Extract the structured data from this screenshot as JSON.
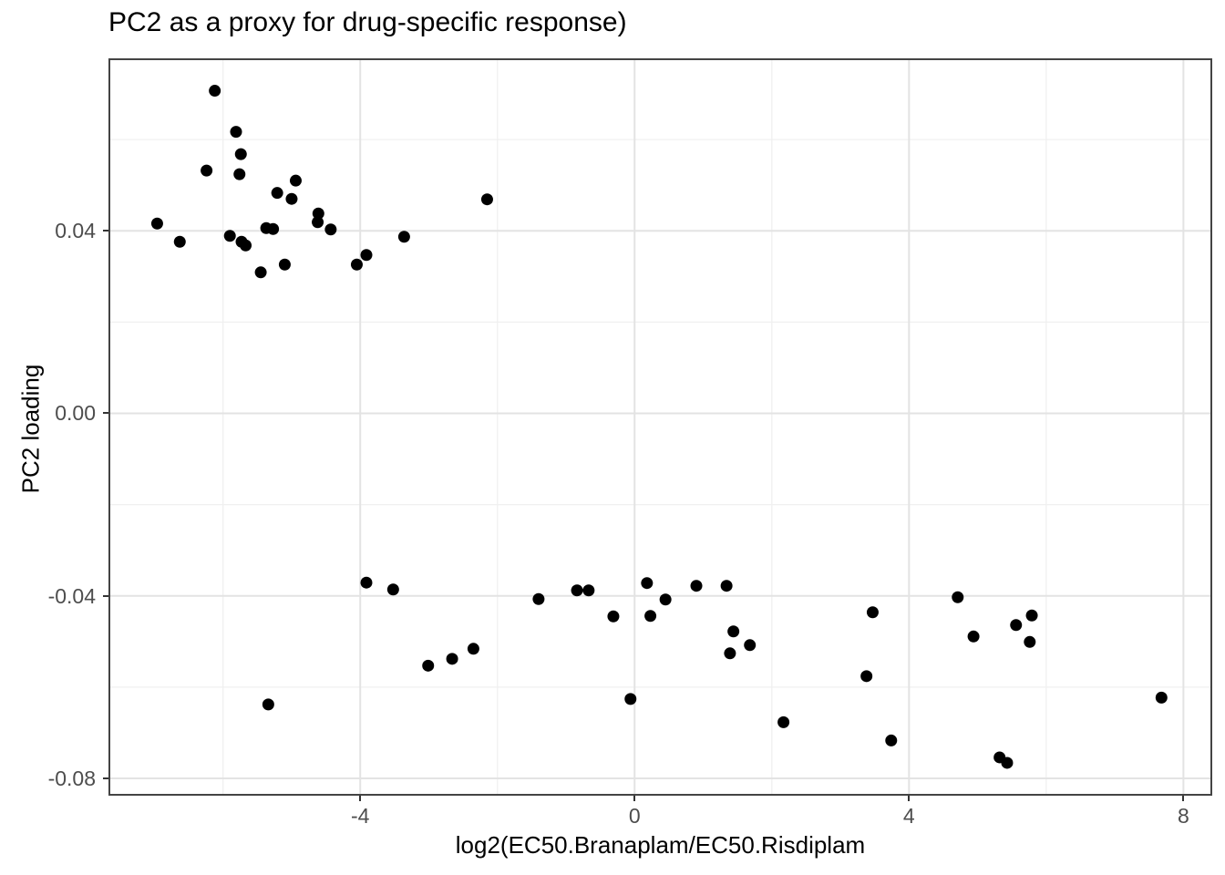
{
  "title": "PC2 as a proxy for drug-specific response)",
  "axes": {
    "x_label": "log2(EC50.Branaplam/EC50.Risdiplam",
    "y_label": "PC2 loading"
  },
  "colors": {
    "point": "#000000",
    "panel_border": "#444444",
    "grid_major": "#e3e3e3",
    "grid_minor": "#f0f0f0",
    "tick_label": "#4d4d4d",
    "tick_mark": "#333333",
    "background": "#ffffff"
  },
  "chart_data": {
    "type": "scatter",
    "title": "PC2 as a proxy for drug-specific response)",
    "xlabel": "log2(EC50.Branaplam/EC50.Risdiplam",
    "ylabel": "PC2 loading",
    "xlim": [
      -7.67,
      8.42
    ],
    "ylim": [
      -0.0838,
      0.0778
    ],
    "x_ticks": [
      -4,
      0,
      4,
      8
    ],
    "x_tick_labels": [
      "-4",
      "0",
      "4",
      "8"
    ],
    "x_minor_ticks": [
      -6,
      -2,
      2,
      6
    ],
    "y_ticks": [
      0.04,
      0.0,
      -0.04,
      -0.08
    ],
    "y_tick_labels": [
      "0.04",
      "0.00",
      "-0.04",
      "-0.08"
    ],
    "y_minor_ticks": [
      0.06,
      0.02,
      -0.02,
      -0.06
    ],
    "grid": true,
    "legend": "none",
    "point_radius_px": 6.5,
    "points": [
      [
        -6.12,
        0.0707
      ],
      [
        -5.81,
        0.0617
      ],
      [
        -5.74,
        0.0568
      ],
      [
        -6.24,
        0.0532
      ],
      [
        -5.76,
        0.0524
      ],
      [
        -4.94,
        0.051
      ],
      [
        -5.21,
        0.0483
      ],
      [
        -5.0,
        0.047
      ],
      [
        -4.61,
        0.0438
      ],
      [
        -4.62,
        0.0419
      ],
      [
        -6.96,
        0.0416
      ],
      [
        -5.37,
        0.0406
      ],
      [
        -5.27,
        0.0404
      ],
      [
        -4.43,
        0.0403
      ],
      [
        -5.9,
        0.0389
      ],
      [
        -6.63,
        0.0376
      ],
      [
        -5.73,
        0.0376
      ],
      [
        -5.67,
        0.0368
      ],
      [
        -5.45,
        0.0309
      ],
      [
        -5.1,
        0.0326
      ],
      [
        -4.05,
        0.0326
      ],
      [
        -3.91,
        0.0347
      ],
      [
        -3.36,
        0.0387
      ],
      [
        -2.15,
        0.0469
      ],
      [
        -3.91,
        -0.0371
      ],
      [
        -3.52,
        -0.0386
      ],
      [
        -3.01,
        -0.0553
      ],
      [
        -2.66,
        -0.0538
      ],
      [
        -2.35,
        -0.0516
      ],
      [
        -5.34,
        -0.0638
      ],
      [
        -1.4,
        -0.0407
      ],
      [
        -0.84,
        -0.0388
      ],
      [
        -0.67,
        -0.0388
      ],
      [
        -0.31,
        -0.0445
      ],
      [
        0.18,
        -0.0372
      ],
      [
        0.45,
        -0.0408
      ],
      [
        0.23,
        -0.0444
      ],
      [
        0.9,
        -0.0378
      ],
      [
        1.34,
        -0.0378
      ],
      [
        1.44,
        -0.0478
      ],
      [
        1.39,
        -0.0526
      ],
      [
        1.68,
        -0.0508
      ],
      [
        -0.06,
        -0.0626
      ],
      [
        3.47,
        -0.0436
      ],
      [
        3.38,
        -0.0576
      ],
      [
        2.17,
        -0.0677
      ],
      [
        3.74,
        -0.0717
      ],
      [
        4.71,
        -0.0403
      ],
      [
        4.94,
        -0.0489
      ],
      [
        5.56,
        -0.0464
      ],
      [
        5.79,
        -0.0443
      ],
      [
        5.76,
        -0.0501
      ],
      [
        5.32,
        -0.0754
      ],
      [
        5.43,
        -0.0766
      ],
      [
        7.68,
        -0.0623
      ]
    ]
  }
}
